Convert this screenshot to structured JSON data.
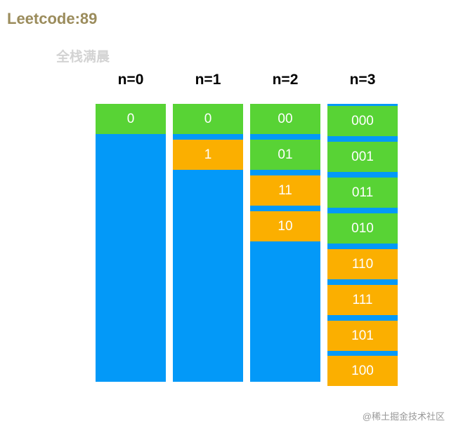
{
  "title": "Leetcode:89",
  "subtitle": "全栈满晨",
  "watermark": "@稀土掘金技术社区",
  "colors": {
    "blue": "#0399f8",
    "green": "#58d335",
    "orange": "#fbaf00",
    "title": "#9b8c5c"
  },
  "columns": [
    {
      "label": "n=0",
      "cells": [
        {
          "text": "0",
          "color": "green"
        }
      ]
    },
    {
      "label": "n=1",
      "cells": [
        {
          "text": "0",
          "color": "green"
        },
        {
          "text": "1",
          "color": "orange"
        }
      ]
    },
    {
      "label": "n=2",
      "cells": [
        {
          "text": "00",
          "color": "green"
        },
        {
          "text": "01",
          "color": "green"
        },
        {
          "text": "11",
          "color": "orange"
        },
        {
          "text": "10",
          "color": "orange"
        }
      ]
    },
    {
      "label": "n=3",
      "cells": [
        {
          "text": "000",
          "color": "green"
        },
        {
          "text": "001",
          "color": "green"
        },
        {
          "text": "011",
          "color": "green"
        },
        {
          "text": "010",
          "color": "green"
        },
        {
          "text": "110",
          "color": "orange"
        },
        {
          "text": "111",
          "color": "orange"
        },
        {
          "text": "101",
          "color": "orange"
        },
        {
          "text": "100",
          "color": "orange"
        }
      ]
    }
  ]
}
